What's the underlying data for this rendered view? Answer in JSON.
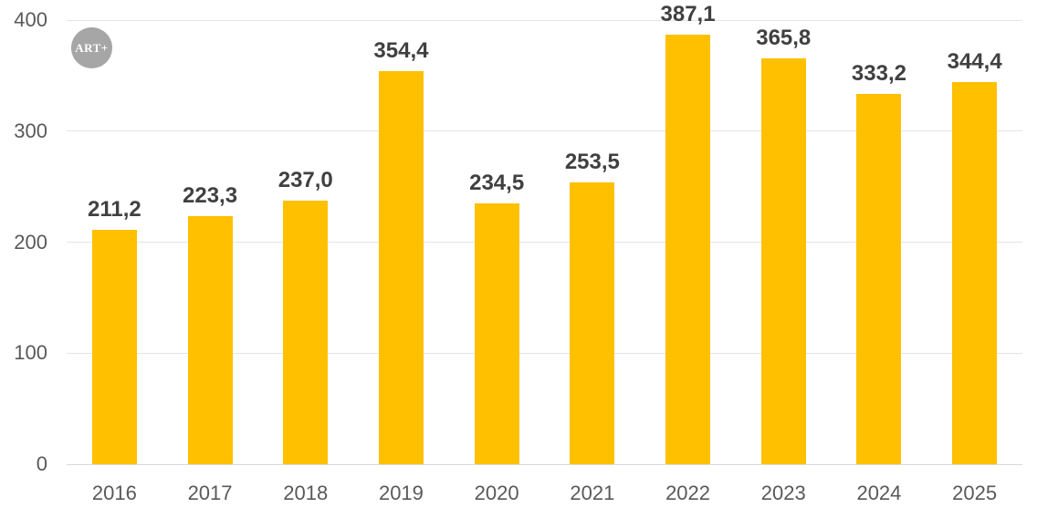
{
  "logo": {
    "text": "ART+"
  },
  "colors": {
    "background": "#FFFFFF",
    "bar": "#FFC000",
    "value_label": "#404040",
    "axis_label": "#595959",
    "gridline": "#E4E4E4",
    "baseline": "#D9D9D9",
    "logo_circle": "#A6A6A6",
    "logo_text": "#FFFFFF"
  },
  "chart_data": {
    "type": "bar",
    "title": "",
    "xlabel": "",
    "ylabel": "",
    "categories": [
      "2016",
      "2017",
      "2018",
      "2019",
      "2020",
      "2021",
      "2022",
      "2023",
      "2024",
      "2025"
    ],
    "values": [
      211.2,
      223.3,
      237.0,
      354.4,
      234.5,
      253.5,
      387.1,
      365.8,
      333.2,
      344.4
    ],
    "value_labels": [
      "211,2",
      "223,3",
      "237,0",
      "354,4",
      "234,5",
      "253,5",
      "387,1",
      "365,8",
      "333,2",
      "344,4"
    ],
    "ylim": [
      0,
      400
    ],
    "yticks": [
      0,
      100,
      200,
      300,
      400
    ],
    "ytick_labels": [
      "0",
      "100",
      "200",
      "300",
      "400"
    ],
    "grid": true,
    "legend": false,
    "decimal_separator": ","
  }
}
